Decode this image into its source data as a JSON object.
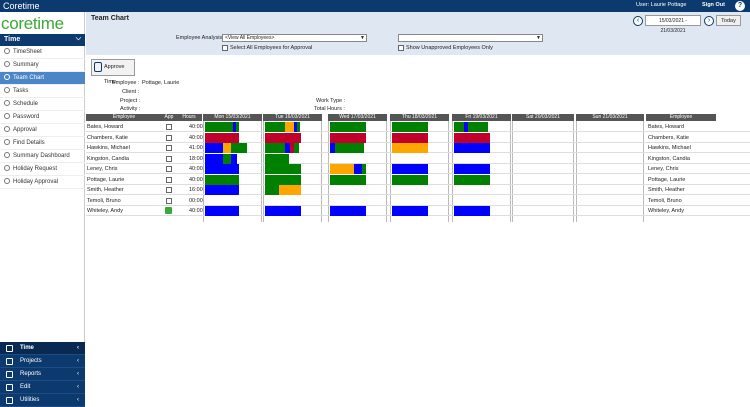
{
  "topbar": {
    "brand": "Coretime",
    "user": "User: Laurie Pottage",
    "signout": "Sign Out",
    "help": "?"
  },
  "sidebar": {
    "logo": "coretime",
    "section": "Time",
    "items": [
      {
        "label": "TimeSheet",
        "active": false
      },
      {
        "label": "Summary",
        "active": false
      },
      {
        "label": "Team Chart",
        "active": true
      },
      {
        "label": "Tasks",
        "active": false
      },
      {
        "label": "Schedule",
        "active": false
      },
      {
        "label": "Password",
        "active": false
      },
      {
        "label": "Approval",
        "active": false
      },
      {
        "label": "Find Details",
        "active": false
      },
      {
        "label": "Summary Dashboard",
        "active": false
      },
      {
        "label": "Holiday Request",
        "active": false
      },
      {
        "label": "Holiday Approval",
        "active": false
      }
    ],
    "bottom": [
      {
        "label": "Time",
        "selected": true
      },
      {
        "label": "Projects",
        "selected": false
      },
      {
        "label": "Reports",
        "selected": false
      },
      {
        "label": "Edit",
        "selected": false
      },
      {
        "label": "Utilities",
        "selected": false
      }
    ]
  },
  "page": {
    "title": "Team Chart",
    "date_range": "15/03/2021 - 21/03/2021",
    "today": "Today",
    "employee_analysis_label": "Employee Analysis :",
    "employee_analysis_value": "<View All Employees>",
    "select_all_label": "Select All Employees for Approval",
    "show_unapproved_label": "Show Unapproved Employees Only",
    "second_select_value": "",
    "approve_label": "Approve Time"
  },
  "details": {
    "employee_label": "Employee :",
    "employee_value": "Pottage, Laurie",
    "client_label": "Client :",
    "project_label": "Project :",
    "activity_label": "Activity :",
    "worktype_label": "Work Type :",
    "totalhours_label": "Total Hours :"
  },
  "colors": {
    "blue": "#0000ff",
    "green": "#008000",
    "red": "#c0002a",
    "orange": "#ffa500",
    "navy": "#0d3a6e"
  },
  "grid": {
    "headers": {
      "employee": "Employee",
      "app": "App",
      "hours": "Hours",
      "days": [
        "Mon 15/03/2021",
        "Tue 16/03/2021",
        "Wed 17/03/2021",
        "Thu 18/03/2021",
        "Fri 19/03/2021",
        "Sat 20/03/2021",
        "Sun 21/03/2021"
      ],
      "employee_right": "Employee"
    },
    "rows": [
      {
        "name": "Bates, Howard",
        "hours": "40:00",
        "approved": false
      },
      {
        "name": "Chambers, Katie",
        "hours": "40:00",
        "approved": false
      },
      {
        "name": "Hawkins, Michael",
        "hours": "41:00",
        "approved": false
      },
      {
        "name": "Kingston, Candia",
        "hours": "18:00",
        "approved": false
      },
      {
        "name": "Leney, Chris",
        "hours": "40:00",
        "approved": false
      },
      {
        "name": "Pottage, Laurie",
        "hours": "40:00",
        "approved": false
      },
      {
        "name": "Smith, Heather",
        "hours": "16:00",
        "approved": false
      },
      {
        "name": "Temoli, Bruno",
        "hours": "00:00",
        "approved": false
      },
      {
        "name": "Whiteley, Andy",
        "hours": "40:00",
        "approved": true
      }
    ]
  }
}
